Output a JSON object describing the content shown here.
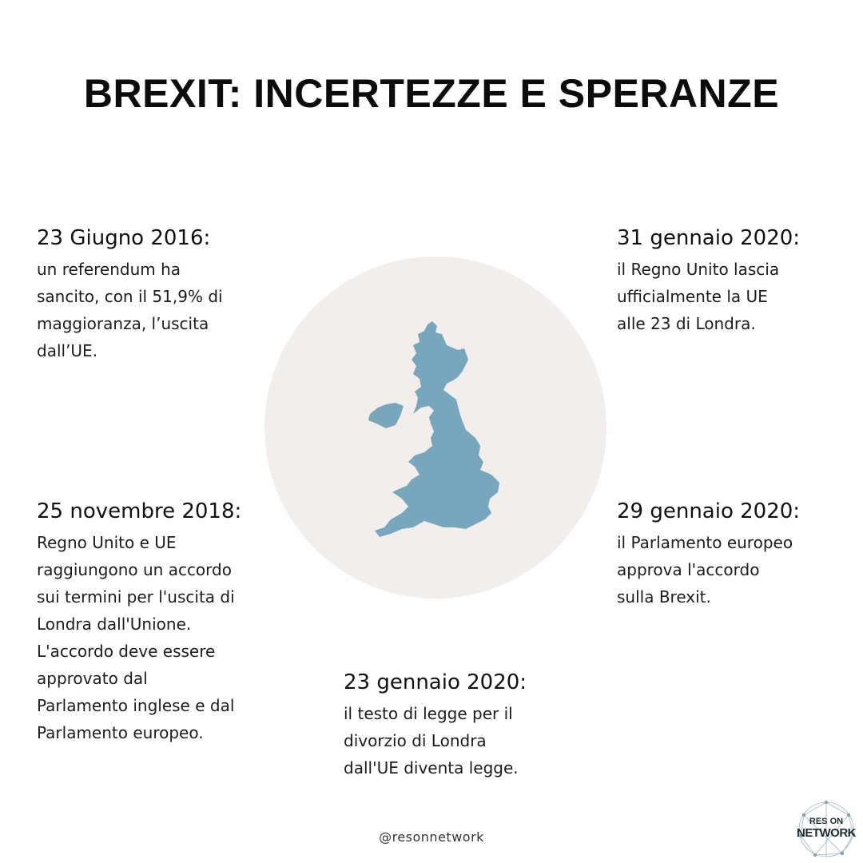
{
  "title": "BREXIT: INCERTEZZE E SPERANZE",
  "events": [
    {
      "date": "23 Giugno 2016:",
      "text": "un referendum  ha\nsancito, con il 51,9% di\nmaggioranza, l’uscita\ndall’UE."
    },
    {
      "date": "31 gennaio 2020:",
      "text": "il Regno Unito lascia\nufficialmente la UE\nalle 23 di Londra."
    },
    {
      "date": "25 novembre 2018:",
      "text": "Regno Unito e UE\nraggiungono un accordo\nsui termini per l'uscita di\nLondra dall'Unione.\nL'accordo deve essere\napprovato dal\nParlamento inglese e dal\nParlamento europeo."
    },
    {
      "date": "29 gennaio 2020:",
      "text": "il Parlamento europeo\napprova l'accordo\nsulla Brexit."
    },
    {
      "date": "23 gennaio 2020:",
      "text": "il testo di legge per il\ndivorzio di Londra\ndall'UE diventa legge."
    }
  ],
  "footer": {
    "handle": "@resonnetwork"
  },
  "logo": {
    "top": "RES ON",
    "main": "NETWORK"
  },
  "colors": {
    "circle": "#f2eeeb",
    "map": "#78a7bd",
    "text": "#111111"
  },
  "icons": {
    "map": "uk-map-icon",
    "logo": "network-logo-icon"
  }
}
